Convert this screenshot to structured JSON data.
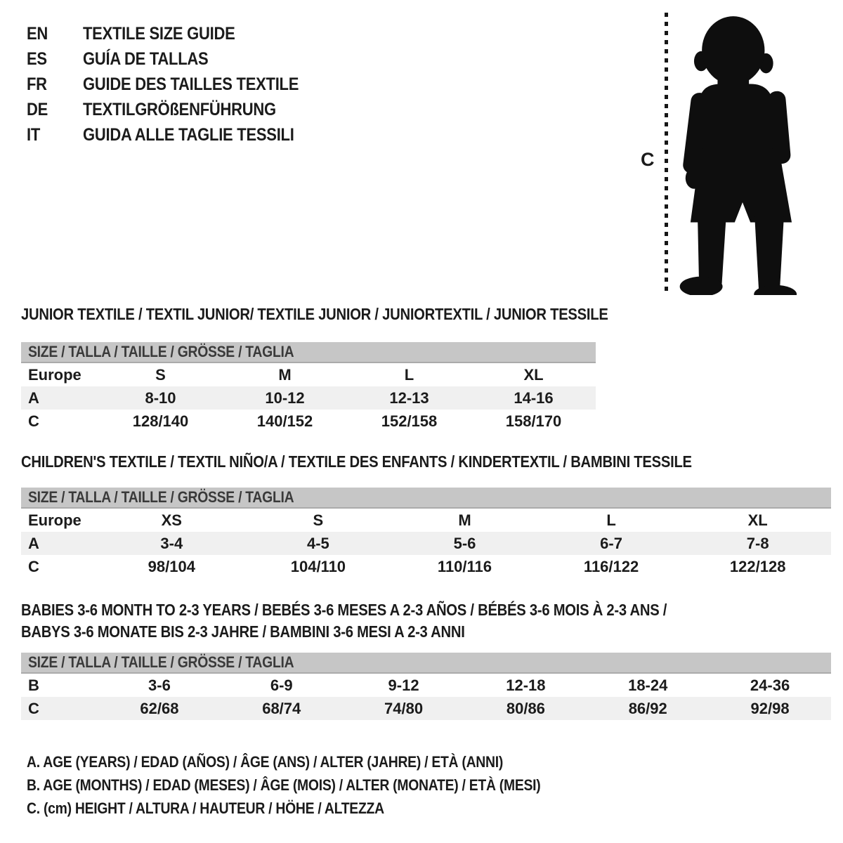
{
  "colors": {
    "bar_gray": "#c6c6c6",
    "row_shade": "#f0f0f0",
    "silhouette_black": "#0e0e0e",
    "text": "#1b1b1b"
  },
  "header": {
    "languages": [
      {
        "code": "EN",
        "title": "TEXTILE SIZE GUIDE"
      },
      {
        "code": "ES",
        "title": "GUÍA DE TALLAS"
      },
      {
        "code": "FR",
        "title": "GUIDE DES TAILLES TEXTILE"
      },
      {
        "code": "DE",
        "title": "TEXTILGRÖßENFÜHRUNG"
      },
      {
        "code": "IT",
        "title": "GUIDA ALLE TAGLIE TESSILI"
      }
    ]
  },
  "figure": {
    "icon": "toddler-silhouette-icon",
    "height_line_icon": "dashed-height-line",
    "height_label": "C"
  },
  "tables": [
    {
      "titles": [
        "JUNIOR TEXTILE / TEXTIL JUNIOR/ TEXTILE JUNIOR / JUNIORTEXTIL / JUNIOR TESSILE"
      ],
      "size_header": "SIZE / TALLA / TAILLE / GRÖSSE / TAGLIA",
      "rows": [
        {
          "label": "Europe",
          "cells": [
            "S",
            "M",
            "L",
            "XL"
          ],
          "shaded": false
        },
        {
          "label": "A",
          "cells": [
            "8-10",
            "10-12",
            "12-13",
            "14-16"
          ],
          "shaded": true
        },
        {
          "label": "C",
          "cells": [
            "128/140",
            "140/152",
            "152/158",
            "158/170"
          ],
          "shaded": false
        }
      ]
    },
    {
      "titles": [
        "CHILDREN'S TEXTILE / TEXTIL NIÑO/A / TEXTILE DES ENFANTS / KINDERTEXTIL / BAMBINI TESSILE"
      ],
      "size_header": "SIZE / TALLA / TAILLE / GRÖSSE / TAGLIA",
      "rows": [
        {
          "label": "Europe",
          "cells": [
            "XS",
            "S",
            "M",
            "L",
            "XL"
          ],
          "shaded": false
        },
        {
          "label": "A",
          "cells": [
            "3-4",
            "4-5",
            "5-6",
            "6-7",
            "7-8"
          ],
          "shaded": true
        },
        {
          "label": "C",
          "cells": [
            "98/104",
            "104/110",
            "110/116",
            "116/122",
            "122/128"
          ],
          "shaded": false
        }
      ]
    },
    {
      "titles": [
        "BABIES 3-6 MONTH TO 2-3 YEARS / BEBÉS 3-6 MESES A 2-3 AÑOS / BÉBÉS 3-6 MOIS À 2-3 ANS /",
        "BABYS 3-6 MONATE BIS 2-3 JAHRE / BAMBINI 3-6 MESI A 2-3 ANNI"
      ],
      "size_header": "SIZE / TALLA / TAILLE / GRÖSSE / TAGLIA",
      "rows": [
        {
          "label": "B",
          "cells": [
            "3-6",
            "6-9",
            "9-12",
            "12-18",
            "18-24",
            "24-36"
          ],
          "shaded": false
        },
        {
          "label": "C",
          "cells": [
            "62/68",
            "68/74",
            "74/80",
            "80/86",
            "86/92",
            "92/98"
          ],
          "shaded": true
        }
      ]
    }
  ],
  "legend": {
    "lines": [
      "A. AGE (YEARS) / EDAD (AÑOS) / ÂGE (ANS) / ALTER (JAHRE) / ETÀ (ANNI)",
      "B. AGE (MONTHS) / EDAD (MESES) / ÂGE (MOIS) / ALTER (MONATE) / ETÀ (MESI)",
      "C. (cm) HEIGHT / ALTURA / HAUTEUR / HÖHE / ALTEZZA"
    ]
  }
}
